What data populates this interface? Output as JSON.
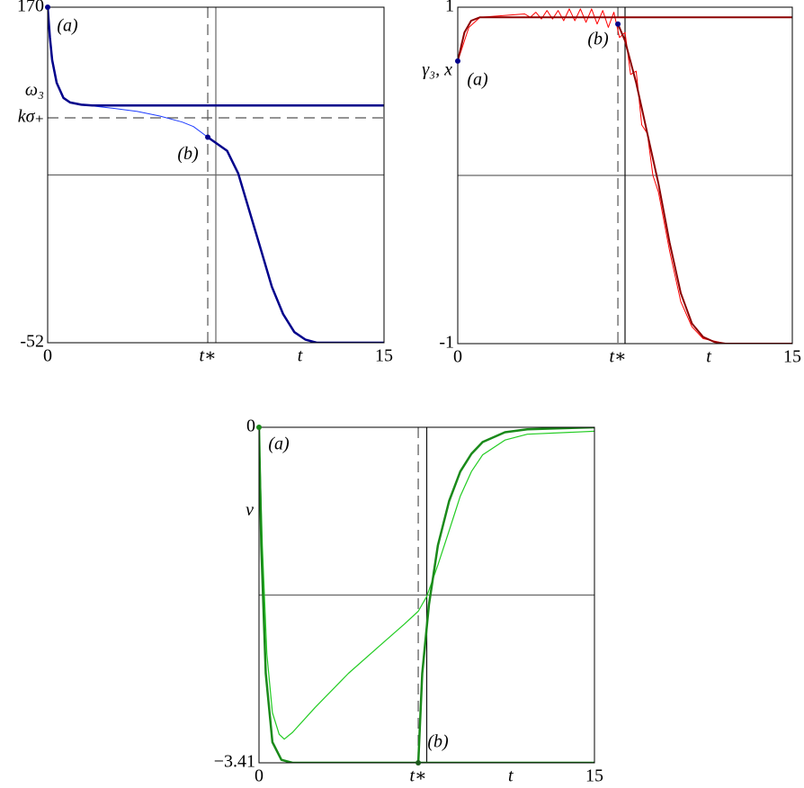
{
  "chart_data": [
    {
      "type": "line",
      "xlim": [
        0,
        15
      ],
      "ylim": [
        -52,
        170
      ],
      "xticks": [
        0,
        {
          "value": 7.14,
          "label": "t∗"
        },
        15
      ],
      "yticks": [
        -52,
        {
          "value": 96.8,
          "label": "kσ₊"
        },
        {
          "value": 105,
          "label": "ω₃"
        },
        170
      ],
      "xlabel": "t",
      "series": [
        {
          "color": "#1e3cff",
          "linewidth": 1,
          "x": [
            1.5,
            3,
            4,
            5,
            6,
            6.5,
            7.14
          ],
          "values": [
            105.5,
            103,
            101,
            98,
            94,
            91,
            84
          ]
        },
        {
          "color": "#00008b",
          "linewidth": 2.5,
          "x": [
            0,
            0.1,
            0.2,
            0.4,
            0.7,
            1,
            1.5,
            2,
            15
          ],
          "values": [
            170,
            150,
            135,
            120,
            110,
            107,
            105.5,
            105,
            105
          ]
        },
        {
          "color": "#00008b",
          "linewidth": 2.5,
          "x": [
            7.14,
            8,
            8.5,
            9,
            9.5,
            10,
            10.5,
            11,
            11.5,
            12,
            15
          ],
          "values": [
            84,
            75,
            60,
            35,
            10,
            -15,
            -33,
            -45,
            -50,
            -52,
            -52
          ]
        }
      ],
      "reference_lines": [
        {
          "axis": "y",
          "value": 96.8,
          "style": "dashed"
        },
        {
          "axis": "y",
          "value": 59,
          "style": "solid"
        },
        {
          "axis": "x",
          "value": 7.14,
          "style": "dashed"
        },
        {
          "axis": "x",
          "value": 7.5,
          "style": "solid"
        }
      ],
      "points": [
        {
          "label": "(a)",
          "x": 0,
          "y": 170,
          "color": "#00008b"
        },
        {
          "label": "(b)",
          "x": 7.14,
          "y": 84,
          "color": "#00008b"
        }
      ]
    },
    {
      "type": "line",
      "xlim": [
        0,
        15
      ],
      "ylim": [
        -1,
        1
      ],
      "xticks": [
        0,
        {
          "value": 7.18,
          "label": "t∗"
        },
        15
      ],
      "yticks": [
        -1,
        1
      ],
      "xlabel": "t",
      "ylabel": "γ₃, x",
      "series": [
        {
          "color": "#ff0000",
          "linewidth": 1,
          "x": [
            0,
            0.5,
            1,
            2,
            3,
            3.25,
            3.5,
            3.75,
            4,
            4.25,
            4.5,
            4.75,
            5,
            5.25,
            5.5,
            5.75,
            6,
            6.25,
            6.5,
            6.75,
            7,
            7.25,
            7.5,
            7.75,
            8,
            8.25,
            8.5,
            8.75,
            9,
            9.5,
            10,
            10.5,
            11,
            12,
            15
          ],
          "values": [
            0.68,
            0.88,
            0.94,
            0.95,
            0.96,
            0.94,
            0.97,
            0.93,
            0.98,
            0.93,
            0.98,
            0.92,
            0.99,
            0.92,
            0.99,
            0.91,
            0.99,
            0.9,
            0.98,
            0.88,
            0.97,
            0.82,
            0.85,
            0.6,
            0.62,
            0.3,
            0.25,
            0.0,
            -0.1,
            -0.45,
            -0.75,
            -0.9,
            -0.97,
            -1,
            -1
          ]
        },
        {
          "color": "#8b0000",
          "linewidth": 2,
          "x": [
            0,
            0.3,
            0.6,
            1,
            15
          ],
          "values": [
            0.68,
            0.85,
            0.92,
            0.94,
            0.94
          ]
        },
        {
          "color": "#8b0000",
          "linewidth": 2,
          "x": [
            7.18,
            7.5,
            8,
            8.5,
            9,
            9.5,
            10,
            10.5,
            11,
            11.5,
            12,
            15
          ],
          "values": [
            0.9,
            0.8,
            0.55,
            0.25,
            -0.05,
            -0.4,
            -0.7,
            -0.88,
            -0.96,
            -0.99,
            -1,
            -1
          ]
        }
      ],
      "reference_lines": [
        {
          "axis": "y",
          "value": 0,
          "style": "solid"
        },
        {
          "axis": "x",
          "value": 7.18,
          "style": "dashed"
        },
        {
          "axis": "x",
          "value": 7.5,
          "style": "dark"
        }
      ],
      "points": [
        {
          "label": "(a)",
          "x": 0,
          "y": 0.68,
          "color": "#00008b"
        },
        {
          "label": "(b)",
          "x": 7.18,
          "y": 0.9,
          "color": "#00008b"
        }
      ]
    },
    {
      "type": "line",
      "xlim": [
        0,
        15
      ],
      "ylim": [
        -3.41,
        0
      ],
      "xticks": [
        0,
        {
          "value": 7.12,
          "label": "t∗"
        },
        15
      ],
      "yticks": [
        {
          "value": -3.41,
          "label": "−3.41"
        },
        0
      ],
      "xlabel": "t",
      "ylabel": "v",
      "series": [
        {
          "color": "#22cc22",
          "linewidth": 1.2,
          "x": [
            0,
            0.15,
            0.35,
            0.6,
            0.9,
            1.13,
            1.5,
            2.5,
            4,
            5.5,
            6.5,
            7.12,
            7.5,
            8,
            8.5,
            9,
            9.5,
            10,
            11,
            12,
            15
          ],
          "values": [
            0,
            -1.2,
            -2.3,
            -2.9,
            -3.12,
            -3.17,
            -3.1,
            -2.85,
            -2.5,
            -2.2,
            -2.0,
            -1.87,
            -1.72,
            -1.4,
            -1.05,
            -0.7,
            -0.45,
            -0.28,
            -0.13,
            -0.07,
            -0.04
          ]
        },
        {
          "color": "#1a8a1a",
          "linewidth": 2.5,
          "x": [
            0,
            0.1,
            0.3,
            0.6,
            1,
            1.5,
            15
          ],
          "values": [
            0,
            -1.2,
            -2.5,
            -3.2,
            -3.38,
            -3.41,
            -3.41
          ]
        },
        {
          "color": "#1a8a1a",
          "linewidth": 2.5,
          "x": [
            7.12,
            7.3,
            7.6,
            8,
            8.5,
            9,
            9.5,
            10,
            11,
            12,
            15
          ],
          "values": [
            -3.41,
            -2.5,
            -1.8,
            -1.2,
            -0.75,
            -0.45,
            -0.27,
            -0.15,
            -0.05,
            -0.02,
            0
          ]
        }
      ],
      "reference_lines": [
        {
          "axis": "y",
          "value": -1.705,
          "style": "solid"
        },
        {
          "axis": "x",
          "value": 7.12,
          "style": "dashed"
        },
        {
          "axis": "x",
          "value": 7.5,
          "style": "dark"
        }
      ],
      "points": [
        {
          "label": "(a)",
          "x": 0,
          "y": 0,
          "color": "#1a8a1a"
        },
        {
          "label": "(b)",
          "x": 7.12,
          "y": -3.41,
          "color": "#1a5a1a"
        }
      ]
    }
  ]
}
